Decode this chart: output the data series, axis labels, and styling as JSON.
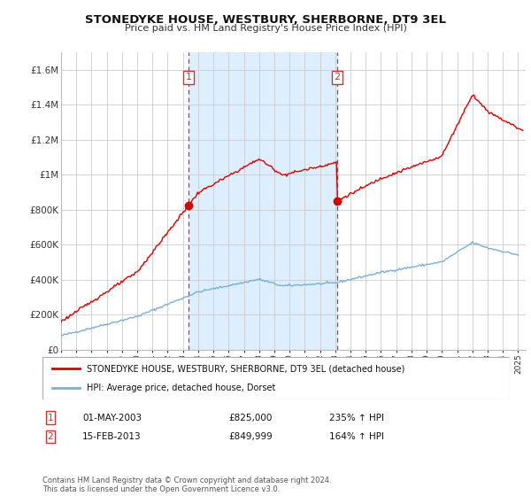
{
  "title": "STONEDYKE HOUSE, WESTBURY, SHERBORNE, DT9 3EL",
  "subtitle": "Price paid vs. HM Land Registry's House Price Index (HPI)",
  "legend_line1": "STONEDYKE HOUSE, WESTBURY, SHERBORNE, DT9 3EL (detached house)",
  "legend_line2": "HPI: Average price, detached house, Dorset",
  "footnote": "Contains HM Land Registry data © Crown copyright and database right 2024.\nThis data is licensed under the Open Government Licence v3.0.",
  "transaction1_date": "01-MAY-2003",
  "transaction1_price": "£825,000",
  "transaction1_hpi": "235% ↑ HPI",
  "transaction2_date": "15-FEB-2013",
  "transaction2_price": "£849,999",
  "transaction2_hpi": "164% ↑ HPI",
  "ylim": [
    0,
    1700000
  ],
  "yticks": [
    0,
    200000,
    400000,
    600000,
    800000,
    1000000,
    1200000,
    1400000,
    1600000
  ],
  "ytick_labels": [
    "£0",
    "£200K",
    "£400K",
    "£600K",
    "£800K",
    "£1M",
    "£1.2M",
    "£1.4M",
    "£1.6M"
  ],
  "red_line_color": "#dd0000",
  "blue_line_color": "#7bafd4",
  "vline_color": "#cc3333",
  "shade_color": "#ddeeff",
  "background_color": "#ffffff",
  "grid_color": "#cccccc",
  "marker1_x": 2003.37,
  "marker1_y": 825000,
  "marker2_x": 2013.12,
  "marker2_y": 849999,
  "xmin": 1995,
  "xmax": 2025.5
}
